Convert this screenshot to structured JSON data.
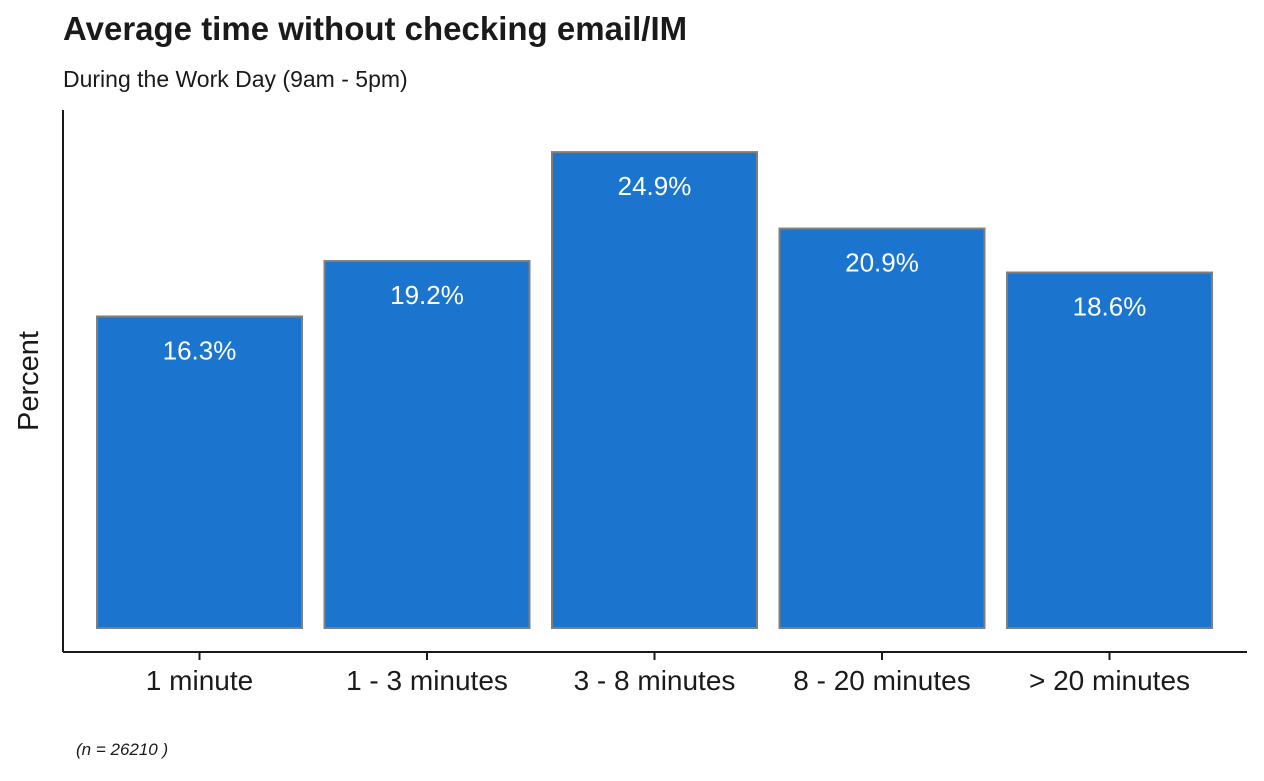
{
  "title": "Average time without checking email/IM",
  "subtitle": "During the Work Day (9am - 5pm)",
  "caption": "(n = 26210 )",
  "chart_data": {
    "type": "bar",
    "title": "Average time without checking email/IM",
    "subtitle": "During the Work Day (9am - 5pm)",
    "xlabel": "",
    "ylabel": "Percent",
    "categories": [
      "1 minute",
      "1 - 3 minutes",
      "3 - 8 minutes",
      "8 - 20 minutes",
      "> 20 minutes"
    ],
    "values": [
      16.3,
      19.2,
      24.9,
      20.9,
      18.6
    ],
    "data_labels": [
      "16.3%",
      "19.2%",
      "24.9%",
      "20.9%",
      "18.6%"
    ],
    "ylim": [
      0,
      25.9
    ],
    "y_ticks_shown": false,
    "grid": false,
    "legend": "none",
    "bar_color": "#1b75cf",
    "bar_border_color": "#7f7f7f",
    "label_color": "#ffffff"
  }
}
